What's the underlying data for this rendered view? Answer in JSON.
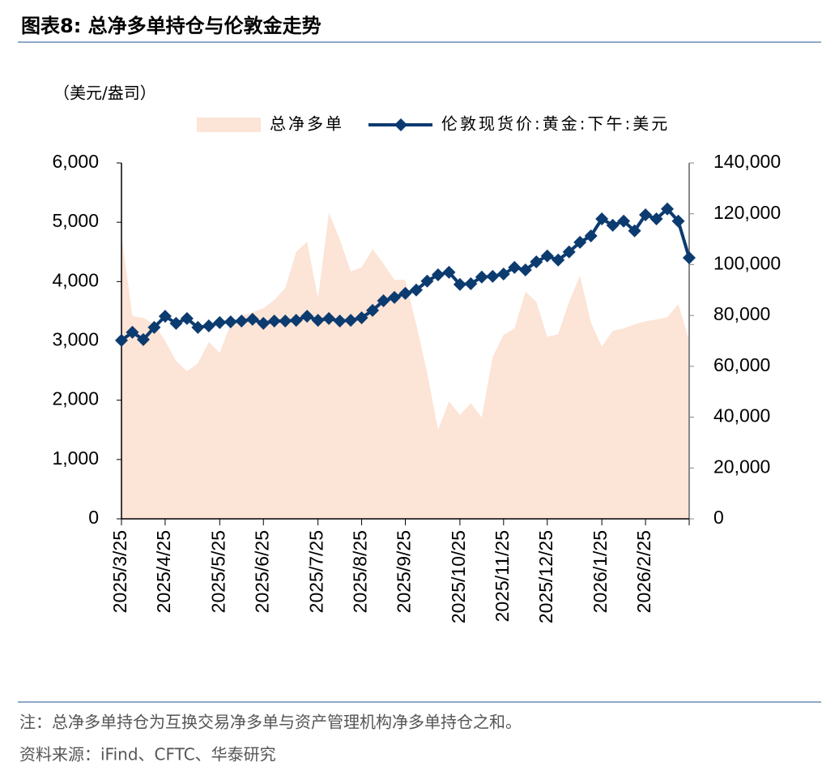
{
  "chart_data": {
    "type": "area-line",
    "title": "图表8:  总净多单持仓与伦敦金走势",
    "unit_label": "（美元/盎司）",
    "note": "注：总净多单持仓为互换交易净多单与资产管理机构净多单持仓之和。",
    "source": "资料来源：iFind、CFTC、华泰研究",
    "categories": [
      "2025/3/25",
      null,
      null,
      null,
      "2025/4/25",
      null,
      null,
      null,
      null,
      "2025/5/25",
      null,
      null,
      null,
      "2025/6/25",
      null,
      null,
      null,
      null,
      "2025/7/25",
      null,
      null,
      null,
      "2025/8/25",
      null,
      null,
      null,
      "2025/9/25",
      null,
      null,
      null,
      null,
      "2025/10/25",
      null,
      null,
      null,
      "2025/11/25",
      null,
      null,
      null,
      "2025/12/25",
      null,
      null,
      null,
      null,
      "2026/1/25",
      null,
      null,
      null,
      "2026/2/25",
      null,
      null,
      null,
      null
    ],
    "series": [
      {
        "name": "总净多单",
        "type": "area",
        "axis": "y",
        "color": "#fce4d6",
        "values": [
          4780,
          3420,
          3390,
          3280,
          3000,
          2660,
          2490,
          2620,
          2980,
          2800,
          3280,
          3420,
          3480,
          3550,
          3690,
          3890,
          4500,
          4670,
          3720,
          5160,
          4710,
          4170,
          4240,
          4550,
          4300,
          4030,
          4030,
          3280,
          2460,
          1500,
          1980,
          1750,
          1950,
          1710,
          2730,
          3100,
          3210,
          3830,
          3660,
          3070,
          3110,
          3660,
          4100,
          3310,
          2900,
          3170,
          3210,
          3280,
          3330,
          3360,
          3400,
          3620,
          3010
        ]
      },
      {
        "name": "伦敦现货价:黄金:下午:美元",
        "type": "line",
        "axis": "y2",
        "color": "#0c3b70",
        "values": [
          70200,
          73400,
          70500,
          75300,
          79700,
          76900,
          78800,
          75300,
          75900,
          77200,
          77500,
          77800,
          78500,
          76900,
          77800,
          77800,
          78100,
          79700,
          78100,
          78800,
          77800,
          78100,
          79100,
          82000,
          85800,
          87100,
          88700,
          90000,
          93500,
          96000,
          97000,
          92200,
          92500,
          95100,
          95400,
          96300,
          98900,
          97900,
          101100,
          103400,
          101800,
          105000,
          108800,
          111300,
          118000,
          115500,
          117100,
          113300,
          119600,
          118000,
          121900,
          117100,
          102700
        ]
      }
    ],
    "ylim": [
      0,
      6000
    ],
    "yticks": [
      0,
      {
        "value": 1000,
        "label": "1,000"
      },
      {
        "value": 2000,
        "label": "2,000"
      },
      {
        "value": 3000,
        "label": "3,000"
      },
      {
        "value": 4000,
        "label": "4,000"
      },
      {
        "value": 5000,
        "label": "5,000"
      },
      {
        "value": 6000,
        "label": "6,000"
      }
    ],
    "y2lim": [
      0,
      140000
    ],
    "y2ticks": [
      0,
      {
        "value": 20000,
        "label": "20,000"
      },
      {
        "value": 40000,
        "label": "40,000"
      },
      {
        "value": 60000,
        "label": "60,000"
      },
      {
        "value": 80000,
        "label": "80,000"
      },
      {
        "value": 100000,
        "label": "100,000"
      },
      {
        "value": 120000,
        "label": "120,000"
      },
      {
        "value": 140000,
        "label": "140,000"
      }
    ],
    "grid": false
  }
}
